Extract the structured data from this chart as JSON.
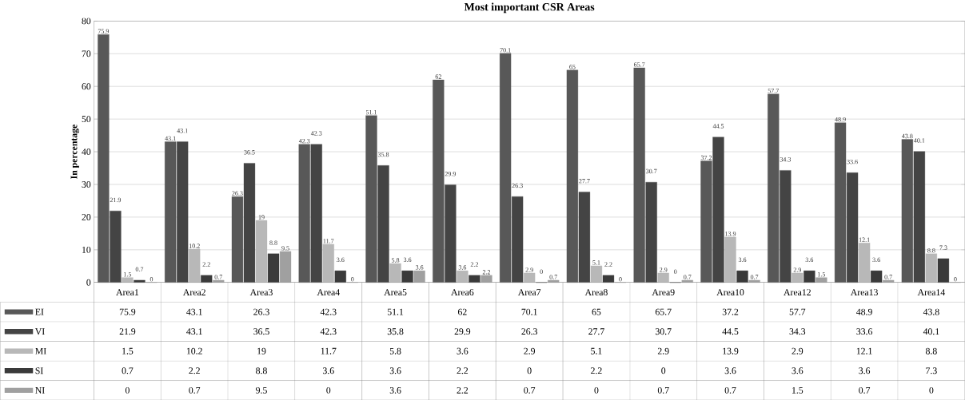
{
  "chart_data": {
    "type": "bar",
    "title": "Most important CSR Areas",
    "ylabel": "In percentage",
    "categories": [
      "Area1",
      "Area2",
      "Area3",
      "Area4",
      "Area5",
      "Area6",
      "Area7",
      "Area8",
      "Area9",
      "Area10",
      "Area12",
      "Area13",
      "Area14"
    ],
    "series": [
      {
        "name": "EI",
        "color": "#585858",
        "values": [
          75.9,
          43.1,
          26.3,
          42.3,
          51.1,
          62,
          70.1,
          65,
          65.7,
          37.2,
          57.7,
          48.9,
          43.8
        ]
      },
      {
        "name": "VI",
        "color": "#444444",
        "values": [
          21.9,
          43.1,
          36.5,
          42.3,
          35.8,
          29.9,
          26.3,
          27.7,
          30.7,
          44.5,
          34.3,
          33.6,
          40.1
        ]
      },
      {
        "name": "MI",
        "color": "#b8b8b8",
        "values": [
          1.5,
          10.2,
          19,
          11.7,
          5.8,
          3.6,
          2.9,
          5.1,
          2.9,
          13.9,
          2.9,
          12.1,
          8.8
        ]
      },
      {
        "name": "SI",
        "color": "#3a3a3a",
        "values": [
          0.7,
          2.2,
          8.8,
          3.6,
          3.6,
          2.2,
          0,
          2.2,
          0,
          3.6,
          3.6,
          3.6,
          7.3
        ]
      },
      {
        "name": "NI",
        "color": "#a0a0a0",
        "values": [
          0,
          0.7,
          9.5,
          0,
          3.6,
          2.2,
          0.7,
          0,
          0.7,
          0.7,
          1.5,
          0.7,
          0
        ]
      }
    ],
    "annotations": [
      "75.9",
      "43.1",
      "26.3",
      "42.3",
      "51.1",
      "62",
      "70.1",
      "65",
      "65.7",
      "37.2",
      "57.7",
      "48.9",
      "43.8",
      "21.9",
      "43.1",
      "36.5",
      "42.3",
      "35.8",
      "29.9",
      "26.3",
      "27.7",
      "30.7",
      "44.5",
      "34.3",
      "33.6",
      "40.1",
      "1.5",
      "10.2",
      "19",
      "11.7",
      "5.8",
      "3.6",
      "2.9",
      "5.1",
      "2.9",
      "13.9",
      "2.9",
      "12.1",
      "8.8",
      "0.7",
      "2.2",
      "8.8",
      "3.6",
      "3.6",
      "2.2",
      "0",
      "2.2",
      "0",
      "3.6",
      "3.6",
      "3.6",
      "7.3",
      "0",
      "0.7",
      "9.5",
      "0",
      "3.6",
      "2.2",
      "0.7",
      "0",
      "0.7",
      "0.7",
      "1.5",
      "0.7",
      "0"
    ],
    "ylim": [
      0,
      80
    ],
    "yticks": [
      0,
      10,
      20,
      30,
      40,
      50,
      60,
      70,
      80
    ],
    "grid": "y",
    "legend": "bottom left",
    "data_labels": true
  }
}
